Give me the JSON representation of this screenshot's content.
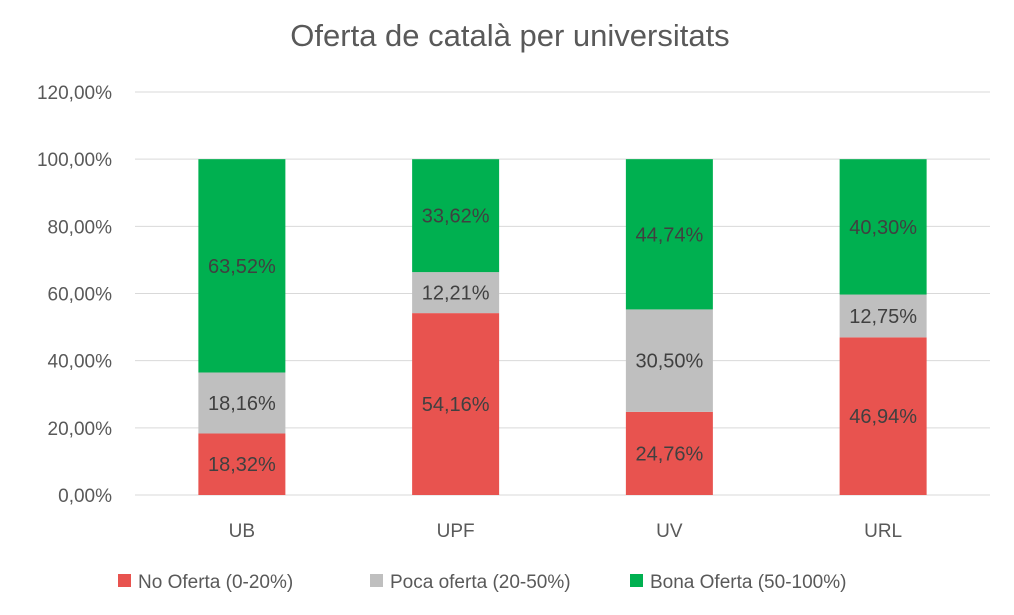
{
  "chart_data": {
    "type": "bar",
    "stacked": true,
    "title": "Oferta de català per universitats",
    "xlabel": "",
    "ylabel": "",
    "ylim": [
      0,
      120
    ],
    "yticks": [
      0,
      20,
      40,
      60,
      80,
      100,
      120
    ],
    "ytick_labels": [
      "0,00%",
      "20,00%",
      "40,00%",
      "60,00%",
      "80,00%",
      "100,00%",
      "120,00%"
    ],
    "grid": true,
    "legend_position": "bottom",
    "categories": [
      "UB",
      "UPF",
      "UV",
      "URL"
    ],
    "series": [
      {
        "name": "No Oferta (0-20%)",
        "color": "#e8534f",
        "values": [
          18.32,
          54.16,
          24.76,
          46.94
        ],
        "labels": [
          "18,32%",
          "54,16%",
          "24,76%",
          "46,94%"
        ]
      },
      {
        "name": "Poca oferta (20-50%)",
        "color": "#bfbfbf",
        "values": [
          18.16,
          12.21,
          30.5,
          12.75
        ],
        "labels": [
          "18,16%",
          "12,21%",
          "30,50%",
          "12,75%"
        ]
      },
      {
        "name": "Bona Oferta (50-100%)",
        "color": "#00b050",
        "values": [
          63.52,
          33.62,
          44.74,
          40.3
        ],
        "labels": [
          "63,52%",
          "33,62%",
          "44,74%",
          "40,30%"
        ]
      }
    ]
  }
}
